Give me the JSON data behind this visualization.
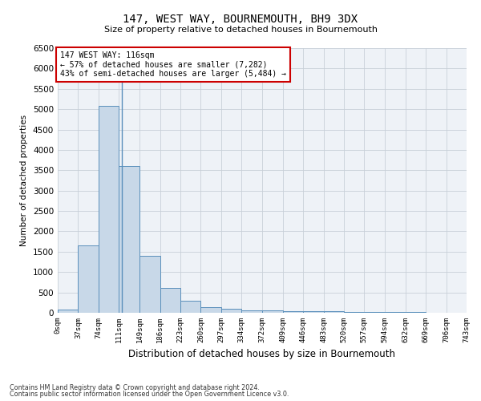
{
  "title": "147, WEST WAY, BOURNEMOUTH, BH9 3DX",
  "subtitle": "Size of property relative to detached houses in Bournemouth",
  "xlabel": "Distribution of detached houses by size in Bournemouth",
  "ylabel": "Number of detached properties",
  "footnote1": "Contains HM Land Registry data © Crown copyright and database right 2024.",
  "footnote2": "Contains public sector information licensed under the Open Government Licence v3.0.",
  "annotation_title": "147 WEST WAY: 116sqm",
  "annotation_line1": "← 57% of detached houses are smaller (7,282)",
  "annotation_line2": "43% of semi-detached houses are larger (5,484) →",
  "property_sqm": 116,
  "bin_edges": [
    0,
    37,
    74,
    111,
    149,
    186,
    223,
    260,
    297,
    334,
    372,
    409,
    446,
    483,
    520,
    557,
    594,
    632,
    669,
    706,
    743
  ],
  "bar_values": [
    75,
    1650,
    5075,
    3600,
    1400,
    620,
    300,
    140,
    90,
    50,
    55,
    45,
    40,
    30,
    25,
    20,
    15,
    10,
    8,
    5
  ],
  "bar_color": "#c8d8e8",
  "bar_edge_color": "#5a8fbb",
  "highlight_color": "#5a8fbb",
  "annotation_box_color": "#cc0000",
  "grid_color": "#c8d0d8",
  "background_color": "#eef2f7",
  "ylim": [
    0,
    6500
  ],
  "yticks": [
    0,
    500,
    1000,
    1500,
    2000,
    2500,
    3000,
    3500,
    4000,
    4500,
    5000,
    5500,
    6000,
    6500
  ]
}
